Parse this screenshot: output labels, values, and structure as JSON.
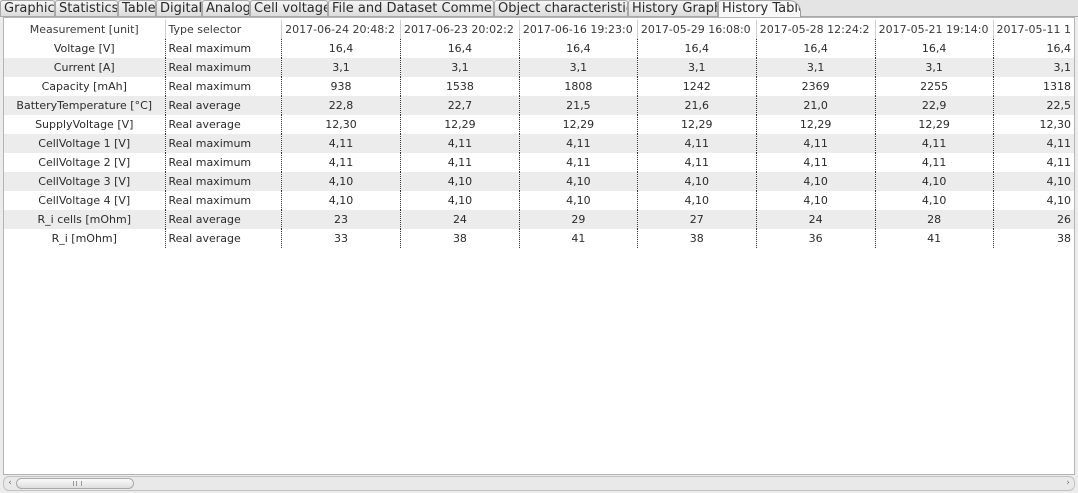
{
  "tabs": [
    {
      "label": "Graphic",
      "active": false
    },
    {
      "label": "Statistics",
      "active": false
    },
    {
      "label": "Table",
      "active": false
    },
    {
      "label": "Digital",
      "active": false
    },
    {
      "label": "Analog",
      "active": false
    },
    {
      "label": "Cell voltage",
      "active": false
    },
    {
      "label": "File and Dataset Comment",
      "active": false
    },
    {
      "label": "Object characteristic",
      "active": false
    },
    {
      "label": "History Graph",
      "active": false
    },
    {
      "label": "History Table",
      "active": true
    }
  ],
  "table": {
    "headers": [
      "Measurement [unit]",
      "Type selector",
      "2017-06-24 20:48:2",
      "2017-06-23 20:02:2",
      "2017-06-16 19:23:0",
      "2017-05-29 16:08:0",
      "2017-05-28 12:24:2",
      "2017-05-21 19:14:0",
      "2017-05-11 1"
    ],
    "rows": [
      [
        "Voltage [V]",
        "Real maximum",
        "16,4",
        "16,4",
        "16,4",
        "16,4",
        "16,4",
        "16,4",
        "16,4"
      ],
      [
        "Current [A]",
        "Real maximum",
        "3,1",
        "3,1",
        "3,1",
        "3,1",
        "3,1",
        "3,1",
        "3,1"
      ],
      [
        "Capacity [mAh]",
        "Real maximum",
        "938",
        "1538",
        "1808",
        "1242",
        "2369",
        "2255",
        "1318"
      ],
      [
        "BatteryTemperature [°C]",
        "Real average",
        "22,8",
        "22,7",
        "21,5",
        "21,6",
        "21,0",
        "22,9",
        "22,5"
      ],
      [
        "SupplyVoltage [V]",
        "Real average",
        "12,30",
        "12,29",
        "12,29",
        "12,29",
        "12,29",
        "12,29",
        "12,30"
      ],
      [
        "CellVoltage 1 [V]",
        "Real maximum",
        "4,11",
        "4,11",
        "4,11",
        "4,11",
        "4,11",
        "4,11",
        "4,11"
      ],
      [
        "CellVoltage 2 [V]",
        "Real maximum",
        "4,11",
        "4,11",
        "4,11",
        "4,11",
        "4,11",
        "4,11",
        "4,11"
      ],
      [
        "CellVoltage 3 [V]",
        "Real maximum",
        "4,10",
        "4,10",
        "4,10",
        "4,10",
        "4,10",
        "4,10",
        "4,10"
      ],
      [
        "CellVoltage 4 [V]",
        "Real maximum",
        "4,10",
        "4,10",
        "4,10",
        "4,10",
        "4,10",
        "4,10",
        "4,10"
      ],
      [
        "R_i cells [mOhm]",
        "Real average",
        "23",
        "24",
        "29",
        "27",
        "24",
        "28",
        "26"
      ],
      [
        "R_i [mOhm]",
        "Real average",
        "33",
        "38",
        "41",
        "38",
        "36",
        "41",
        "38"
      ]
    ]
  },
  "scrollbar": {
    "left_arrow": "‹",
    "right_arrow": "›"
  }
}
